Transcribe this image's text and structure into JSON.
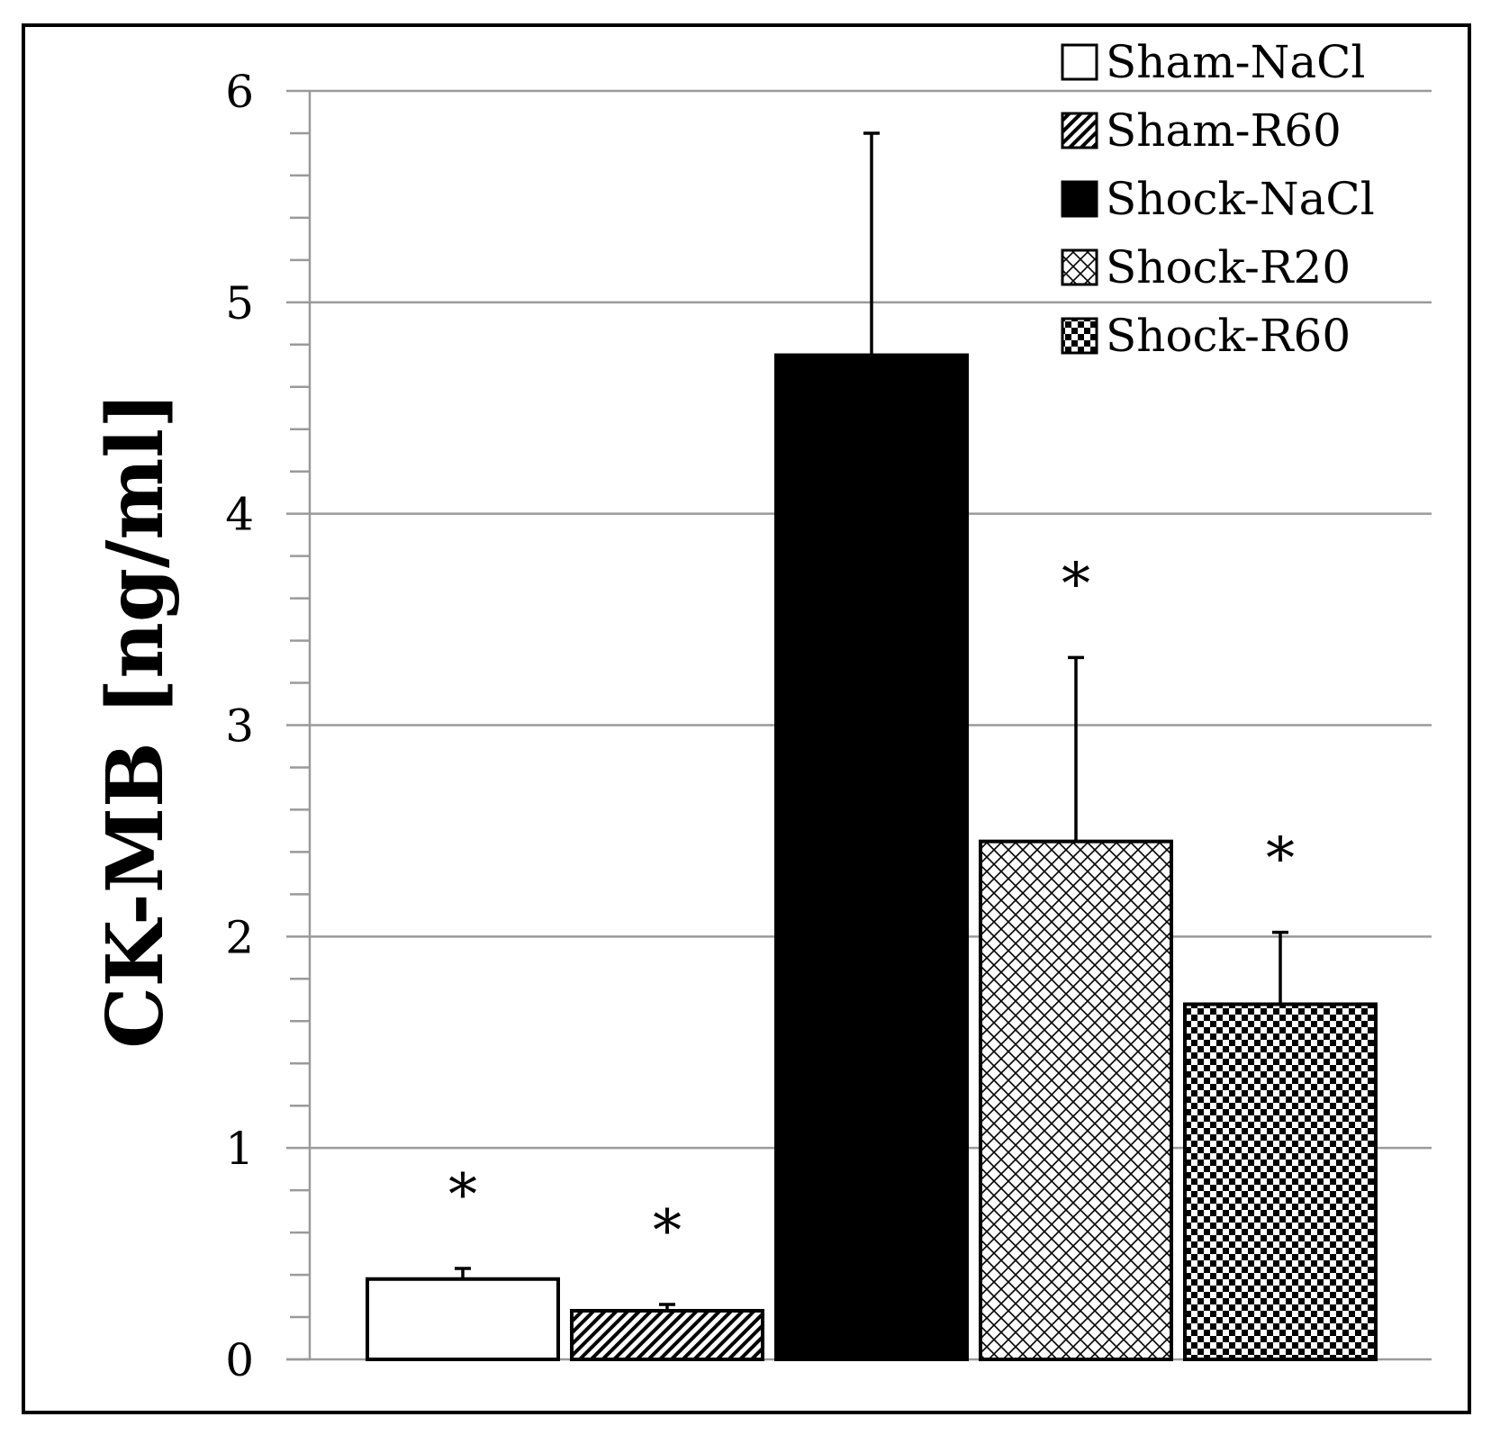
{
  "chart_data": {
    "type": "bar",
    "title": "",
    "xlabel": "",
    "ylabel": "CK-MB [ng/ml]",
    "ylim": [
      0,
      6
    ],
    "yticks": [
      0,
      1,
      2,
      3,
      4,
      5,
      6
    ],
    "grid": true,
    "legend_position": "top-right",
    "series": [
      {
        "name": "Sham-NaCl",
        "value": 0.38,
        "error": 0.05,
        "pattern": "white",
        "significance": "*"
      },
      {
        "name": "Sham-R60",
        "value": 0.23,
        "error": 0.03,
        "pattern": "diagonal-hatch",
        "significance": "*"
      },
      {
        "name": "Shock-NaCl",
        "value": 4.75,
        "error": 1.05,
        "pattern": "solid-black",
        "significance": ""
      },
      {
        "name": "Shock-R20",
        "value": 2.45,
        "error": 0.87,
        "pattern": "crosshatch",
        "significance": "*"
      },
      {
        "name": "Shock-R60",
        "value": 1.68,
        "error": 0.34,
        "pattern": "checkerboard",
        "significance": "*"
      }
    ]
  }
}
